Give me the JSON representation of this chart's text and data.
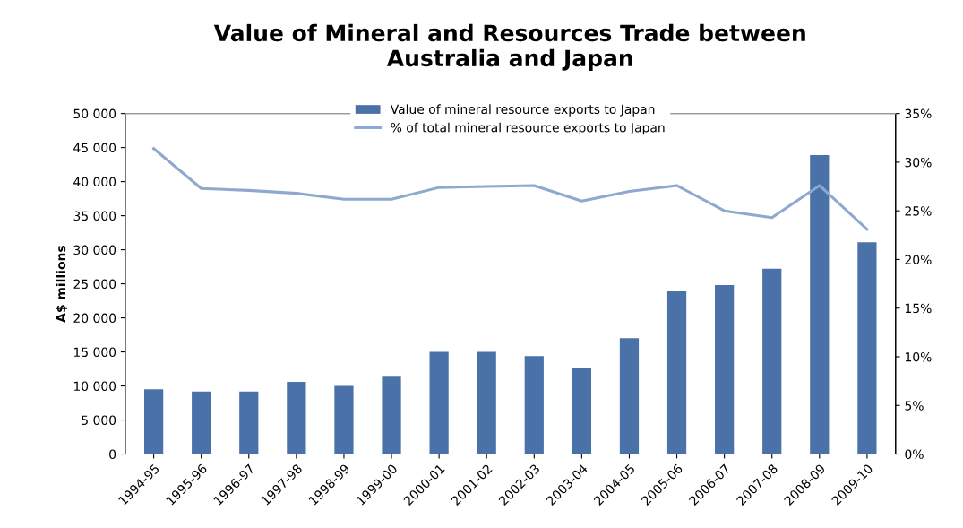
{
  "chart_data": {
    "type": "bar",
    "title": "Value of Mineral and Resources Trade between\nAustralia and Japan",
    "ylabel": "A$ millions",
    "categories": [
      "1994-95",
      "1995-96",
      "1996-97",
      "1997-98",
      "1998-99",
      "1999-00",
      "2000-01",
      "2001-02",
      "2002-03",
      "2003-04",
      "2004-05",
      "2005-06",
      "2006-07",
      "2007-08",
      "2008-09",
      "2009-10"
    ],
    "series": [
      {
        "name": "Value of mineral resource exports to Japan",
        "color": "#4a72a8",
        "values": [
          9500,
          9200,
          9200,
          10600,
          10000,
          11500,
          15000,
          15000,
          14400,
          12600,
          17000,
          23900,
          24800,
          27200,
          43900,
          31100
        ]
      },
      {
        "name": "% of total mineral resource exports to Japan",
        "type": "line",
        "axis": "y2",
        "color": "#8fa8d0",
        "values": [
          31.4,
          27.3,
          27.1,
          26.8,
          26.2,
          26.2,
          27.4,
          27.5,
          27.6,
          26.0,
          27.0,
          27.6,
          25.0,
          24.3,
          27.6,
          23.1
        ]
      }
    ],
    "ylim": [
      0,
      50000
    ],
    "yticks": [
      0,
      {
        "value": 5000,
        "label": "5 000"
      },
      {
        "value": 10000,
        "label": "10 000"
      },
      {
        "value": 15000,
        "label": "15 000"
      },
      {
        "value": 20000,
        "label": "20 000"
      },
      {
        "value": 25000,
        "label": "25 000"
      },
      {
        "value": 30000,
        "label": "30 000"
      },
      {
        "value": 35000,
        "label": "35 000"
      },
      {
        "value": 40000,
        "label": "40 000"
      },
      {
        "value": 45000,
        "label": "45 000"
      },
      {
        "value": 50000,
        "label": "50 000"
      }
    ],
    "y2lim": [
      0,
      35
    ],
    "y2ticks": [
      {
        "value": 0,
        "label": "0%"
      },
      {
        "value": 5,
        "label": "5%"
      },
      {
        "value": 10,
        "label": "10%"
      },
      {
        "value": 15,
        "label": "15%"
      },
      {
        "value": 20,
        "label": "20%"
      },
      {
        "value": 25,
        "label": "25%"
      },
      {
        "value": 30,
        "label": "30%"
      },
      {
        "value": 35,
        "label": "35%"
      }
    ],
    "legend": "top",
    "grid": false,
    "marker": "none",
    "line_style": "solid"
  }
}
